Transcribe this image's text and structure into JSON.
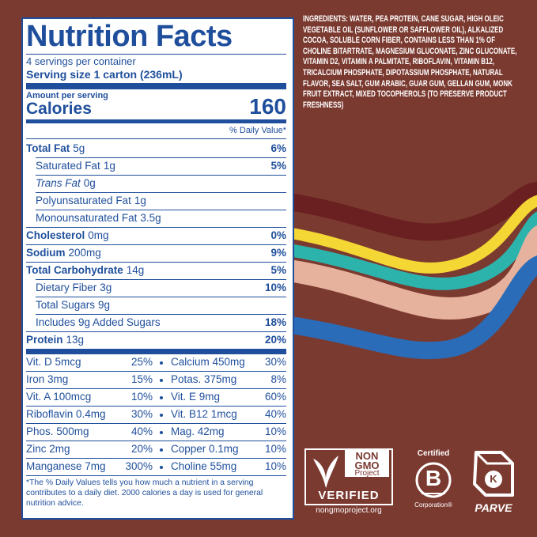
{
  "panel": {
    "title": "Nutrition Facts",
    "servings": "4 servings per container",
    "serving_size": "Serving size 1 carton (236mL)",
    "amount_per_serving": "Amount per serving",
    "calories_label": "Calories",
    "calories": 160,
    "daily_value_header": "% Daily Value*",
    "nutrients": [
      {
        "name": "Total Fat",
        "amount": "5g",
        "daily_value": "6%"
      },
      {
        "name": "Saturated Fat",
        "amount": "1g",
        "daily_value": "5%"
      },
      {
        "name": "Trans Fat",
        "amount": "0g"
      },
      {
        "name": "Polyunsaturated Fat",
        "amount": "1g"
      },
      {
        "name": "Monounsaturated Fat",
        "amount": "3.5g"
      },
      {
        "name": "Cholesterol",
        "amount": "0mg",
        "daily_value": "0%"
      },
      {
        "name": "Sodium",
        "amount": "200mg",
        "daily_value": "9%"
      },
      {
        "name": "Total Carbohydrate",
        "amount": "14g",
        "daily_value": "5%"
      },
      {
        "name": "Dietary Fiber",
        "amount": "3g",
        "daily_value": "10%"
      },
      {
        "name": "Total Sugars",
        "amount": "9g"
      },
      {
        "name": "Includes 9g Added Sugars",
        "daily_value": "18%"
      },
      {
        "name": "Protein",
        "amount": "13g",
        "daily_value": "20%"
      }
    ],
    "vitamins": [
      {
        "left": {
          "name": "Vit. D 5mcg",
          "daily_value": "25%"
        },
        "right": {
          "name": "Calcium 450mg",
          "daily_value": "30%"
        }
      },
      {
        "left": {
          "name": "Iron 3mg",
          "daily_value": "15%"
        },
        "right": {
          "name": "Potas. 375mg",
          "daily_value": "8%"
        }
      },
      {
        "left": {
          "name": "Vit. A 100mcg",
          "daily_value": "10%"
        },
        "right": {
          "name": "Vit. E 9mg",
          "daily_value": "60%"
        }
      },
      {
        "left": {
          "name": "Riboflavin 0.4mg",
          "daily_value": "30%"
        },
        "right": {
          "name": "Vit. B12 1mcg",
          "daily_value": "40%"
        }
      },
      {
        "left": {
          "name": "Phos. 500mg",
          "daily_value": "40%"
        },
        "right": {
          "name": "Mag. 42mg",
          "daily_value": "10%"
        }
      },
      {
        "left": {
          "name": "Zinc 2mg",
          "daily_value": "20%"
        },
        "right": {
          "name": "Copper 0.1mg",
          "daily_value": "10%"
        }
      },
      {
        "left": {
          "name": "Manganese 7mg",
          "daily_value": "300%"
        },
        "right": {
          "name": "Choline 55mg",
          "daily_value": "10%"
        }
      }
    ],
    "footnote": "*The % Daily Values tells you how much a nutrient in a serving contributes to a daily diet. 2000 calories a day is used for general nutrition advice."
  },
  "ingredients": "INGREDIENTS: WATER, PEA PROTEIN, CANE SUGAR, HIGH OLEIC VEGETABLE OIL (SUNFLOWER OR SAFFLOWER OIL), ALKALIZED COCOA, SOLUBLE CORN FIBER, CONTAINS LESS THAN 1% OF CHOLINE BITARTRATE, MAGNESIUM GLUCONATE, ZINC GLUCONATE, VITAMIN D2, VITAMIN A PALMITATE, RIBOFLAVIN, VITAMIN B12, TRICALCIUM PHOSPHATE, DIPOTASSIUM PHOSPHATE, NATURAL FLAVOR, SEA SALT, GUM ARABIC, GUAR GUM, GELLAN GUM, MONK FRUIT EXTRACT, MIXED TOCOPHEROLS (TO PRESERVE PRODUCT FRESHNESS)",
  "badges": {
    "non_gmo": {
      "line1": "NON",
      "line2": "GMO",
      "line3": "Project",
      "verified": "VERIFIED",
      "url": "nongmoproject.org"
    },
    "b_corp": {
      "certified": "Certified",
      "letter": "B",
      "corporation": "Corporation®"
    },
    "kosher": {
      "letter": "K",
      "label": "PARVE"
    }
  }
}
